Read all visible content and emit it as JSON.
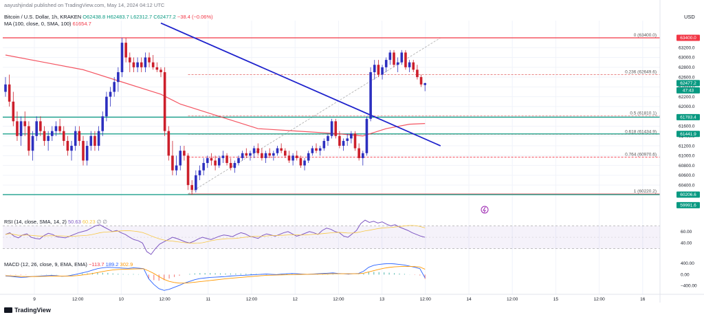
{
  "header": {
    "published_by": "aayushjindal published on TradingView.com, May 14, 2024 04:12 UTC",
    "symbol": "Bitcoin / U.S. Dollar, 1h, KRAKEN",
    "ohlc": {
      "o": "O62438.8",
      "h": "H62483.7",
      "l": "L62312.7",
      "c": "C62477.2",
      "chg": "−38.4 (−0.06%)"
    },
    "ma_label": "MA (100, close, 0, SMA, 100)",
    "ma_value": "61654.7",
    "currency": "USD"
  },
  "indicators": {
    "rsi_label": "RSI (14, close, SMA, 14, 2)",
    "rsi_values": [
      "50.63",
      "60.23",
      "∅",
      "∅"
    ],
    "macd_label": "MACD (12, 26, close, 9, EMA, EMA)",
    "macd_values": [
      "−113.7",
      "189.2",
      "302.9"
    ]
  },
  "footer": {
    "brand": "TradingView"
  },
  "chart_data": {
    "type": "candlestick",
    "y_range": [
      59800,
      63750
    ],
    "y_ticks": [
      "63200.0",
      "63000.0",
      "62800.0",
      "62600.0",
      "62400.0",
      "62200.0",
      "62000.0",
      "61800.0",
      "61600.0",
      "61400.0",
      "61200.0",
      "61000.0",
      "60800.0",
      "60600.0",
      "60400.0",
      "60200.0"
    ],
    "x_ticks": [
      "9",
      "12:00",
      "10",
      "12:00",
      "11",
      "12:00",
      "12",
      "12:00",
      "13",
      "12:00",
      "14",
      "12:00",
      "15",
      "12:00",
      "16"
    ],
    "candles": [
      [
        62300,
        62600,
        62200,
        62450
      ],
      [
        62450,
        62650,
        62000,
        62100
      ],
      [
        62100,
        62300,
        61600,
        61700
      ],
      [
        61700,
        61900,
        61300,
        61400
      ],
      [
        61400,
        61800,
        61200,
        61700
      ],
      [
        61700,
        61900,
        61400,
        61600
      ],
      [
        61600,
        61700,
        61000,
        61100
      ],
      [
        61100,
        61500,
        60900,
        61400
      ],
      [
        61400,
        61800,
        61300,
        61700
      ],
      [
        61700,
        61800,
        61400,
        61500
      ],
      [
        61500,
        61600,
        61200,
        61300
      ],
      [
        61300,
        61500,
        61100,
        61400
      ],
      [
        61400,
        61600,
        61300,
        61500
      ],
      [
        61500,
        61700,
        61400,
        61600
      ],
      [
        61600,
        61750,
        61450,
        61500
      ],
      [
        61500,
        61600,
        61200,
        61300
      ],
      [
        61300,
        61400,
        61000,
        61100
      ],
      [
        61100,
        61300,
        60900,
        61200
      ],
      [
        61200,
        61600,
        61100,
        61500
      ],
      [
        61500,
        61600,
        61200,
        61300
      ],
      [
        61300,
        61400,
        60800,
        60900
      ],
      [
        60900,
        61300,
        60800,
        61200
      ],
      [
        61200,
        61500,
        61100,
        61400
      ],
      [
        61400,
        61500,
        61100,
        61200
      ],
      [
        61200,
        61600,
        61100,
        61500
      ],
      [
        61500,
        61900,
        61400,
        61800
      ],
      [
        61800,
        62300,
        61700,
        62200
      ],
      [
        62200,
        62400,
        62000,
        62300
      ],
      [
        62300,
        62600,
        62200,
        62500
      ],
      [
        62500,
        62800,
        62300,
        62700
      ],
      [
        62700,
        63400,
        62600,
        63300
      ],
      [
        63300,
        63400,
        62900,
        63000
      ],
      [
        63000,
        63100,
        62700,
        62900
      ],
      [
        62900,
        63000,
        62700,
        62800
      ],
      [
        62800,
        63000,
        62700,
        62900
      ],
      [
        62900,
        63000,
        62700,
        62800
      ],
      [
        62800,
        63100,
        62700,
        63000
      ],
      [
        63000,
        63100,
        62800,
        62900
      ],
      [
        62900,
        63050,
        62750,
        62800
      ],
      [
        62800,
        62900,
        62700,
        62750
      ],
      [
        62750,
        62800,
        62600,
        62700
      ],
      [
        62700,
        62800,
        61400,
        61500
      ],
      [
        61500,
        61600,
        60900,
        61000
      ],
      [
        61000,
        61300,
        60600,
        60700
      ],
      [
        60700,
        61000,
        60600,
        60800
      ],
      [
        60800,
        61200,
        60700,
        61100
      ],
      [
        61100,
        61200,
        60900,
        61000
      ],
      [
        61000,
        61050,
        60300,
        60400
      ],
      [
        60400,
        60500,
        60200,
        60300
      ],
      [
        60300,
        60700,
        60250,
        60600
      ],
      [
        60600,
        60800,
        60500,
        60700
      ],
      [
        60700,
        60950,
        60600,
        60850
      ],
      [
        60850,
        61000,
        60750,
        60950
      ],
      [
        60950,
        61050,
        60800,
        60900
      ],
      [
        60900,
        61000,
        60700,
        60800
      ],
      [
        60800,
        61000,
        60750,
        60950
      ],
      [
        60950,
        61100,
        60850,
        61000
      ],
      [
        61000,
        61050,
        60800,
        60850
      ],
      [
        60850,
        60950,
        60700,
        60750
      ],
      [
        60750,
        60900,
        60650,
        60850
      ],
      [
        60850,
        61000,
        60800,
        60950
      ],
      [
        60950,
        61100,
        60900,
        61050
      ],
      [
        61050,
        61150,
        60950,
        61000
      ],
      [
        61000,
        61100,
        60900,
        61050
      ],
      [
        61050,
        61200,
        60950,
        61150
      ],
      [
        61150,
        61250,
        61000,
        61050
      ],
      [
        61050,
        61150,
        60900,
        60950
      ],
      [
        60950,
        61100,
        60850,
        61050
      ],
      [
        61050,
        61150,
        60950,
        61000
      ],
      [
        61000,
        61100,
        60900,
        61050
      ],
      [
        61050,
        61200,
        61000,
        61150
      ],
      [
        61150,
        61250,
        61050,
        61100
      ],
      [
        61100,
        61150,
        60950,
        61000
      ],
      [
        61000,
        61100,
        60850,
        60900
      ],
      [
        60900,
        61050,
        60800,
        61000
      ],
      [
        61000,
        61100,
        60900,
        60950
      ],
      [
        60950,
        61000,
        60750,
        60800
      ],
      [
        60800,
        60950,
        60700,
        60900
      ],
      [
        60900,
        61100,
        60850,
        61050
      ],
      [
        61050,
        61200,
        61000,
        61150
      ],
      [
        61150,
        61250,
        61050,
        61100
      ],
      [
        61100,
        61200,
        61000,
        61150
      ],
      [
        61150,
        61350,
        61100,
        61300
      ],
      [
        61300,
        61450,
        61200,
        61400
      ],
      [
        61400,
        61750,
        61350,
        61700
      ],
      [
        61700,
        61750,
        61350,
        61400
      ],
      [
        61400,
        61500,
        61150,
        61200
      ],
      [
        61200,
        61350,
        61100,
        61300
      ],
      [
        61300,
        61450,
        61200,
        61350
      ],
      [
        61350,
        61500,
        61250,
        61450
      ],
      [
        61450,
        61500,
        61100,
        61150
      ],
      [
        61150,
        61250,
        60900,
        60950
      ],
      [
        60950,
        61100,
        60800,
        61050
      ],
      [
        61050,
        61800,
        61000,
        61750
      ],
      [
        61750,
        62800,
        61700,
        62700
      ],
      [
        62700,
        62950,
        62550,
        62850
      ],
      [
        62850,
        62950,
        62600,
        62650
      ],
      [
        62650,
        62850,
        62550,
        62800
      ],
      [
        62800,
        63000,
        62700,
        62950
      ],
      [
        62950,
        63150,
        62850,
        63100
      ],
      [
        63100,
        63150,
        62800,
        62850
      ],
      [
        62850,
        63000,
        62700,
        62900
      ],
      [
        62900,
        63150,
        62850,
        63100
      ],
      [
        63100,
        63150,
        62750,
        62800
      ],
      [
        62800,
        62950,
        62700,
        62900
      ],
      [
        62900,
        62950,
        62700,
        62750
      ],
      [
        62750,
        62850,
        62550,
        62600
      ],
      [
        62600,
        62650,
        62400,
        62450
      ],
      [
        62438.8,
        62483.7,
        62312.7,
        62477.2
      ]
    ],
    "ma100": [
      [
        0,
        63050
      ],
      [
        10,
        62900
      ],
      [
        20,
        62750
      ],
      [
        30,
        62500
      ],
      [
        40,
        62250
      ],
      [
        45,
        62050
      ],
      [
        55,
        61800
      ],
      [
        65,
        61550
      ],
      [
        75,
        61500
      ],
      [
        85,
        61450
      ],
      [
        92,
        61400
      ],
      [
        98,
        61550
      ],
      [
        104,
        61640
      ],
      [
        108,
        61654.7
      ]
    ],
    "fib_levels": [
      {
        "label": "0 (63400.0)",
        "value": 63400
      },
      {
        "label": "0.236 (62649.6)",
        "value": 62649.6
      },
      {
        "label": "0.5 (61810.1)",
        "value": 61810.1
      },
      {
        "label": "0.618 (61434.9)",
        "value": 61434.9
      },
      {
        "label": "0.764 (60970.6)",
        "value": 60970.6
      },
      {
        "label": "1 (60220.2)",
        "value": 60220.2
      }
    ],
    "horizontal_lines": [
      {
        "value": 63400.0,
        "label": "63400.0",
        "color": "#f23645"
      },
      {
        "value": 61783.4,
        "label": "61783.4",
        "color": "#089981"
      },
      {
        "value": 61441.9,
        "label": "61441.9",
        "color": "#089981"
      },
      {
        "value": 60206.6,
        "label": "60206.6",
        "color": "#089981"
      }
    ],
    "price_badges": [
      {
        "label": "62477.2",
        "value": 62477.2,
        "color": "#089981"
      },
      {
        "label": "47:43",
        "value": 62330,
        "color": "#089981"
      },
      {
        "label": "59991.6",
        "value": 59991.6,
        "color": "#089981"
      }
    ],
    "trendline": {
      "from": [
        40,
        63700
      ],
      "to": [
        112,
        61200
      ],
      "color": "#1e22cc"
    },
    "rsi": {
      "ticks": [
        "60.00",
        "40.00"
      ],
      "band": [
        70,
        30
      ],
      "range": [
        20,
        85
      ],
      "values": [
        55,
        58,
        52,
        49,
        54,
        56,
        50,
        48,
        47,
        53,
        57,
        55,
        51,
        50,
        49,
        52,
        55,
        58,
        60,
        62,
        66,
        70,
        72,
        68,
        64,
        60,
        62,
        58,
        55,
        50,
        46,
        44,
        40,
        25,
        20,
        30,
        38,
        42,
        46,
        50,
        48,
        45,
        42,
        40,
        43,
        47,
        50,
        48,
        46,
        49,
        52,
        54,
        53,
        51,
        55,
        58,
        56,
        52,
        50,
        48,
        53,
        56,
        54,
        52,
        55,
        58,
        60,
        56,
        52,
        54,
        57,
        60,
        58,
        55,
        62,
        66,
        64,
        60,
        58,
        52,
        50,
        56,
        62,
        74,
        80,
        76,
        78,
        75,
        77,
        73,
        70,
        72,
        68,
        65,
        62,
        58,
        55,
        52,
        50
      ]
    },
    "macd": {
      "ticks": [
        "400.00",
        "0.00",
        "−400.00"
      ],
      "range": [
        -650,
        520
      ],
      "macd_line": [
        -50,
        -60,
        -80,
        -100,
        -90,
        -70,
        -60,
        -50,
        -40,
        -30,
        -40,
        -60,
        -50,
        -20,
        20,
        60,
        100,
        160,
        210,
        240,
        260,
        250,
        240,
        230,
        220,
        240,
        230,
        210,
        -150,
        -350,
        -500,
        -560,
        -520,
        -450,
        -380,
        -300,
        -240,
        -180,
        -140,
        -120,
        -100,
        -90,
        -80,
        -70,
        -50,
        -40,
        -30,
        -20,
        -10,
        0,
        10,
        20,
        10,
        0,
        20,
        30,
        40,
        30,
        20,
        10,
        20,
        30,
        40,
        50,
        60,
        40,
        30,
        20,
        30,
        40,
        120,
        260,
        330,
        360,
        380,
        390,
        380,
        360,
        340,
        300,
        260,
        210,
        -113.7
      ],
      "signal_line": [
        -40,
        -45,
        -55,
        -65,
        -70,
        -70,
        -68,
        -64,
        -60,
        -55,
        -52,
        -54,
        -54,
        -48,
        -35,
        -15,
        10,
        40,
        75,
        110,
        140,
        165,
        180,
        190,
        195,
        200,
        205,
        205,
        130,
        40,
        -70,
        -170,
        -240,
        -280,
        -300,
        -300,
        -290,
        -270,
        -250,
        -230,
        -210,
        -190,
        -170,
        -150,
        -130,
        -115,
        -100,
        -85,
        -70,
        -55,
        -40,
        -28,
        -20,
        -15,
        -10,
        -5,
        0,
        5,
        8,
        10,
        12,
        15,
        20,
        25,
        30,
        32,
        32,
        30,
        30,
        32,
        50,
        95,
        140,
        185,
        225,
        255,
        275,
        285,
        290,
        290,
        285,
        270,
        189.2
      ]
    }
  }
}
